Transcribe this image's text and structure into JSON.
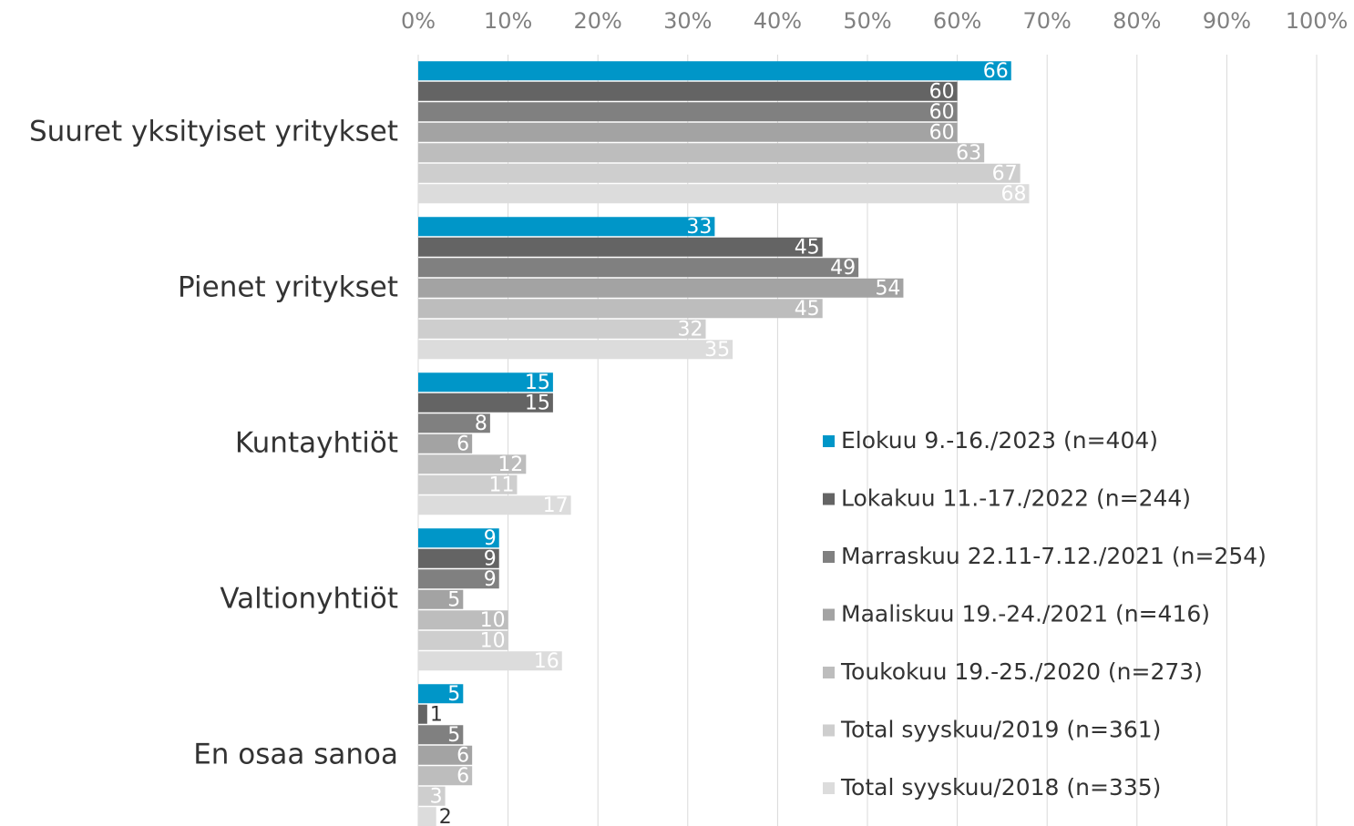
{
  "chart_data": {
    "type": "bar",
    "orientation": "horizontal",
    "categories": [
      "Suuret yksityiset yritykset",
      "Pienet yritykset",
      "Kuntayhtiöt",
      "Valtionyhtiöt",
      "En osaa sanoa"
    ],
    "series": [
      {
        "name": "Elokuu 9.-16./2023 (n=404)",
        "color": "#0096c8",
        "values": [
          66,
          33,
          15,
          9,
          5
        ]
      },
      {
        "name": "Lokakuu 11.-17./2022 (n=244)",
        "color": "#646464",
        "values": [
          60,
          45,
          15,
          9,
          1
        ]
      },
      {
        "name": "Marraskuu 22.11-7.12./2021 (n=254)",
        "color": "#808080",
        "values": [
          60,
          49,
          8,
          9,
          5
        ]
      },
      {
        "name": "Maaliskuu 19.-24./2021 (n=416)",
        "color": "#a3a3a3",
        "values": [
          60,
          54,
          6,
          5,
          6
        ]
      },
      {
        "name": "Toukokuu 19.-25./2020 (n=273)",
        "color": "#bdbdbd",
        "values": [
          63,
          45,
          12,
          10,
          6
        ]
      },
      {
        "name": "Total syyskuu/2019 (n=361)",
        "color": "#cecece",
        "values": [
          67,
          32,
          11,
          10,
          3
        ]
      },
      {
        "name": "Total syyskuu/2018 (n=335)",
        "color": "#dcdcdc",
        "values": [
          68,
          35,
          17,
          16,
          2
        ]
      }
    ],
    "xlim": [
      0,
      100
    ],
    "xticks": [
      {
        "value": 0,
        "label": "0%"
      },
      {
        "value": 10,
        "label": "10%"
      },
      {
        "value": 20,
        "label": "20%"
      },
      {
        "value": 30,
        "label": "30%"
      },
      {
        "value": 40,
        "label": "40%"
      },
      {
        "value": 50,
        "label": "50%"
      },
      {
        "value": 60,
        "label": "60%"
      },
      {
        "value": 70,
        "label": "70%"
      },
      {
        "value": 80,
        "label": "80%"
      },
      {
        "value": 90,
        "label": "90%"
      },
      {
        "value": 100,
        "label": "100%"
      }
    ],
    "grid": true,
    "legend": "right"
  }
}
